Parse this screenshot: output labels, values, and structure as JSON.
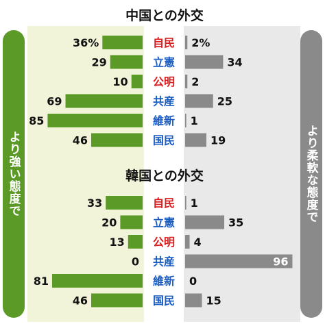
{
  "colors": {
    "green": "#5c9a28",
    "gray": "#8a8a8a",
    "green_tint": "#f1f4d8",
    "gray_tint": "#e9e9e9",
    "party_red": "#d81e1e",
    "party_blue": "#1a5cc0",
    "party_dark": "#1a5cc0"
  },
  "left_label": "より強い態度で",
  "right_label": "より柔軟な態度で",
  "chart_data": [
    {
      "type": "bar",
      "title": "中国との外交",
      "categories": [
        "自民",
        "立憲",
        "公明",
        "共産",
        "維新",
        "国民"
      ],
      "category_colors": [
        "#d81e1e",
        "#1a5cc0",
        "#d81e1e",
        "#1a5cc0",
        "#1a5cc0",
        "#1a5cc0"
      ],
      "series": [
        {
          "name": "より強い態度で",
          "values": [
            36,
            29,
            10,
            69,
            85,
            46
          ],
          "labels": [
            "36%",
            "29",
            "10",
            "69",
            "85",
            "46"
          ]
        },
        {
          "name": "より柔軟な態度で",
          "values": [
            2,
            34,
            2,
            25,
            1,
            19
          ],
          "labels": [
            "2%",
            "34",
            "2",
            "25",
            "1",
            "19"
          ]
        }
      ]
    },
    {
      "type": "bar",
      "title": "韓国との外交",
      "categories": [
        "自民",
        "立憲",
        "公明",
        "共産",
        "維新",
        "国民"
      ],
      "category_colors": [
        "#d81e1e",
        "#1a5cc0",
        "#d81e1e",
        "#1a5cc0",
        "#1a5cc0",
        "#1a5cc0"
      ],
      "series": [
        {
          "name": "より強い態度で",
          "values": [
            33,
            20,
            13,
            0,
            81,
            46
          ],
          "labels": [
            "33",
            "20",
            "13",
            "0",
            "81",
            "46"
          ]
        },
        {
          "name": "より柔軟な態度で",
          "values": [
            1,
            35,
            4,
            96,
            0,
            15
          ],
          "labels": [
            "1",
            "35",
            "4",
            "96",
            "0",
            "15"
          ]
        }
      ]
    }
  ]
}
